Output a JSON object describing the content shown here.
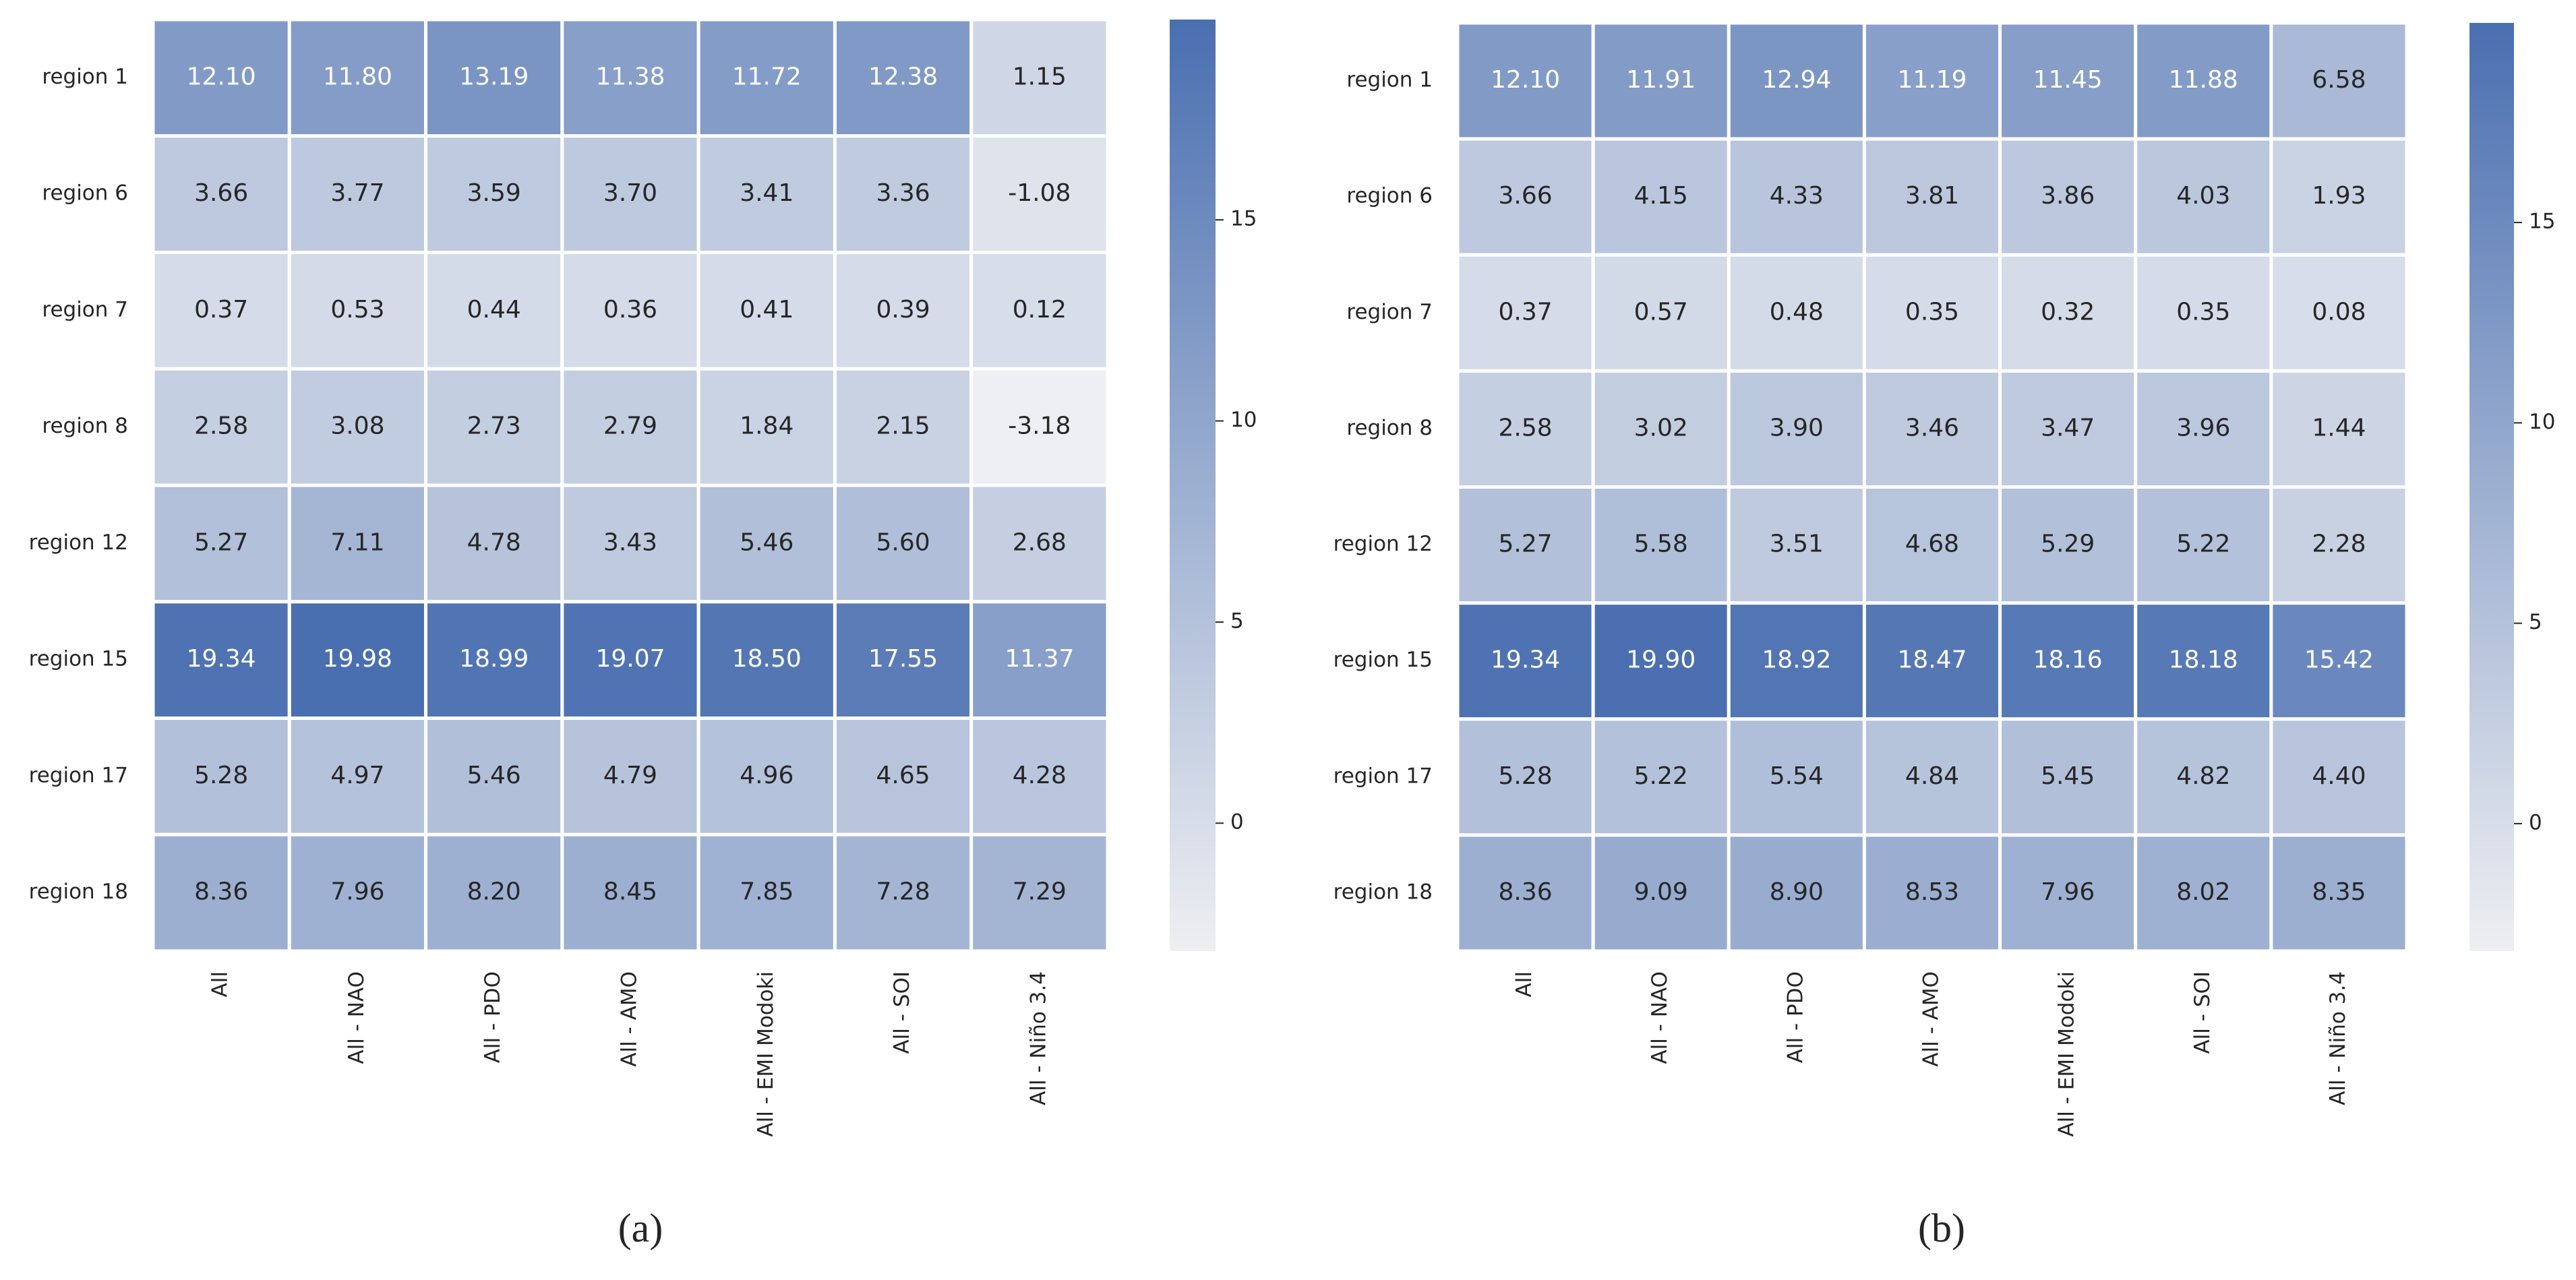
{
  "chart_data": [
    {
      "type": "heatmap",
      "caption": "(a)",
      "x_categories": [
        "All",
        "All - NAO",
        "All - PDO",
        "All - AMO",
        "All - EMI Modoki",
        "All - SOI",
        "All - Niño 3.4"
      ],
      "y_categories": [
        "region 1",
        "region 6",
        "region 7",
        "region 8",
        "region 12",
        "region 15",
        "region 17",
        "region 18"
      ],
      "values": [
        [
          12.1,
          11.8,
          13.19,
          11.38,
          11.72,
          12.38,
          1.15
        ],
        [
          3.66,
          3.77,
          3.59,
          3.7,
          3.41,
          3.36,
          -1.08
        ],
        [
          0.37,
          0.53,
          0.44,
          0.36,
          0.41,
          0.39,
          0.12
        ],
        [
          2.58,
          3.08,
          2.73,
          2.79,
          1.84,
          2.15,
          -3.18
        ],
        [
          5.27,
          7.11,
          4.78,
          3.43,
          5.46,
          5.6,
          2.68
        ],
        [
          19.34,
          19.98,
          18.99,
          19.07,
          18.5,
          17.55,
          11.37
        ],
        [
          5.28,
          4.97,
          5.46,
          4.79,
          4.96,
          4.65,
          4.28
        ],
        [
          8.36,
          7.96,
          8.2,
          8.45,
          7.85,
          7.28,
          7.29
        ]
      ],
      "value_labels": [
        [
          "12.10",
          "11.80",
          "13.19",
          "11.38",
          "11.72",
          "12.38",
          "1.15"
        ],
        [
          "3.66",
          "3.77",
          "3.59",
          "3.70",
          "3.41",
          "3.36",
          "-1.08"
        ],
        [
          "0.37",
          "0.53",
          "0.44",
          "0.36",
          "0.41",
          "0.39",
          "0.12"
        ],
        [
          "2.58",
          "3.08",
          "2.73",
          "2.79",
          "1.84",
          "2.15",
          "-3.18"
        ],
        [
          "5.27",
          "7.11",
          "4.78",
          "3.43",
          "5.46",
          "5.60",
          "2.68"
        ],
        [
          "19.34",
          "19.98",
          "18.99",
          "19.07",
          "18.50",
          "17.55",
          "11.37"
        ],
        [
          "5.28",
          "4.97",
          "5.46",
          "4.79",
          "4.96",
          "4.65",
          "4.28"
        ],
        [
          "8.36",
          "7.96",
          "8.20",
          "8.45",
          "7.85",
          "7.28",
          "7.29"
        ]
      ],
      "zlim": [
        -3.18,
        19.98
      ],
      "zticks": [
        0,
        5,
        10,
        15
      ],
      "colors": [
        "#eeeff2",
        "#4a6fb0"
      ]
    },
    {
      "type": "heatmap",
      "caption": "(b)",
      "x_categories": [
        "All",
        "All - NAO",
        "All - PDO",
        "All - AMO",
        "All - EMI Modoki",
        "All - SOI",
        "All - Niño 3.4"
      ],
      "y_categories": [
        "region 1",
        "region 6",
        "region 7",
        "region 8",
        "region 12",
        "region 15",
        "region 17",
        "region 18"
      ],
      "values": [
        [
          12.1,
          11.91,
          12.94,
          11.19,
          11.45,
          11.88,
          6.58
        ],
        [
          3.66,
          4.15,
          4.33,
          3.81,
          3.86,
          4.03,
          1.93
        ],
        [
          0.37,
          0.57,
          0.48,
          0.35,
          0.32,
          0.35,
          0.08
        ],
        [
          2.58,
          3.02,
          3.9,
          3.46,
          3.47,
          3.96,
          1.44
        ],
        [
          5.27,
          5.58,
          3.51,
          4.68,
          5.29,
          5.22,
          2.28
        ],
        [
          19.34,
          19.9,
          18.92,
          18.47,
          18.16,
          18.18,
          15.42
        ],
        [
          5.28,
          5.22,
          5.54,
          4.84,
          5.45,
          4.82,
          4.4
        ],
        [
          8.36,
          9.09,
          8.9,
          8.53,
          7.96,
          8.02,
          8.35
        ]
      ],
      "value_labels": [
        [
          "12.10",
          "11.91",
          "12.94",
          "11.19",
          "11.45",
          "11.88",
          "6.58"
        ],
        [
          "3.66",
          "4.15",
          "4.33",
          "3.81",
          "3.86",
          "4.03",
          "1.93"
        ],
        [
          "0.37",
          "0.57",
          "0.48",
          "0.35",
          "0.32",
          "0.35",
          "0.08"
        ],
        [
          "2.58",
          "3.02",
          "3.90",
          "3.46",
          "3.47",
          "3.96",
          "1.44"
        ],
        [
          "5.27",
          "5.58",
          "3.51",
          "4.68",
          "5.29",
          "5.22",
          "2.28"
        ],
        [
          "19.34",
          "19.90",
          "18.92",
          "18.47",
          "18.16",
          "18.18",
          "15.42"
        ],
        [
          "5.28",
          "5.22",
          "5.54",
          "4.84",
          "5.45",
          "4.82",
          "4.40"
        ],
        [
          "8.36",
          "9.09",
          "8.90",
          "8.53",
          "7.96",
          "8.02",
          "8.35"
        ]
      ],
      "zlim": [
        -3.18,
        19.98
      ],
      "zticks": [
        0,
        5,
        10,
        15
      ],
      "colors": [
        "#eeeff2",
        "#4a6fb0"
      ]
    }
  ]
}
